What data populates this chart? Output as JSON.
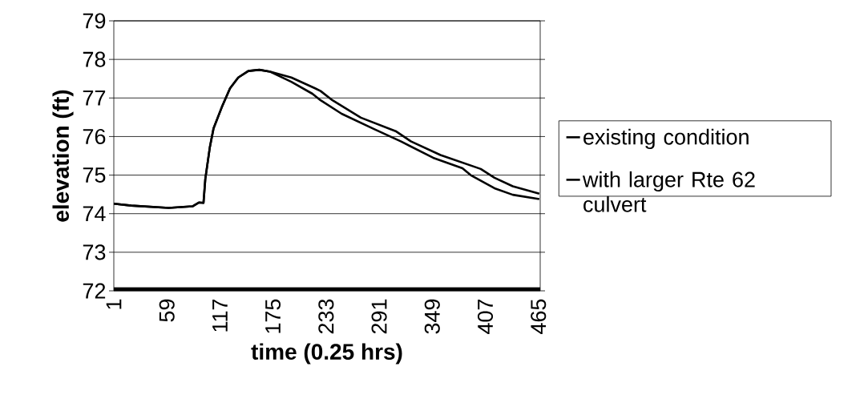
{
  "chart_data": {
    "type": "line",
    "xlabel": "time (0.25 hrs)",
    "ylabel": "elevation (ft)",
    "xlim": [
      1,
      467
    ],
    "xticks": [
      1,
      59,
      117,
      175,
      233,
      291,
      349,
      407,
      465
    ],
    "ylim": [
      72,
      79
    ],
    "yticks": [
      72,
      73,
      74,
      75,
      76,
      77,
      78,
      79
    ],
    "grid": "y",
    "legend": "right",
    "series": [
      {
        "name": "existing condition",
        "color": "#000000",
        "x": [
          1,
          20,
          61,
          87,
          94,
          99,
          101,
          106,
          110,
          119,
          128,
          137,
          148,
          160,
          172,
          195,
          221,
          227,
          240,
          271,
          309,
          326,
          358,
          402,
          417,
          437,
          466
        ],
        "values": [
          74.26,
          74.21,
          74.15,
          74.19,
          74.29,
          74.28,
          74.9,
          75.73,
          76.21,
          76.76,
          77.25,
          77.53,
          77.7,
          77.73,
          77.68,
          77.53,
          77.25,
          77.18,
          76.94,
          76.49,
          76.14,
          75.87,
          75.52,
          75.16,
          74.93,
          74.71,
          74.52
        ]
      },
      {
        "name": "with larger Rte 62 culvert",
        "color": "#000000",
        "x": [
          1,
          20,
          61,
          87,
          94,
          99,
          101,
          106,
          110,
          119,
          128,
          137,
          148,
          160,
          172,
          195,
          218,
          227,
          250,
          285,
          315,
          350,
          382,
          391,
          417,
          437,
          466
        ],
        "values": [
          74.26,
          74.21,
          74.15,
          74.19,
          74.29,
          74.28,
          74.9,
          75.73,
          76.21,
          76.76,
          77.25,
          77.53,
          77.7,
          77.73,
          77.68,
          77.42,
          77.11,
          76.94,
          76.59,
          76.2,
          75.87,
          75.45,
          75.18,
          75.0,
          74.66,
          74.49,
          74.38
        ]
      }
    ]
  }
}
